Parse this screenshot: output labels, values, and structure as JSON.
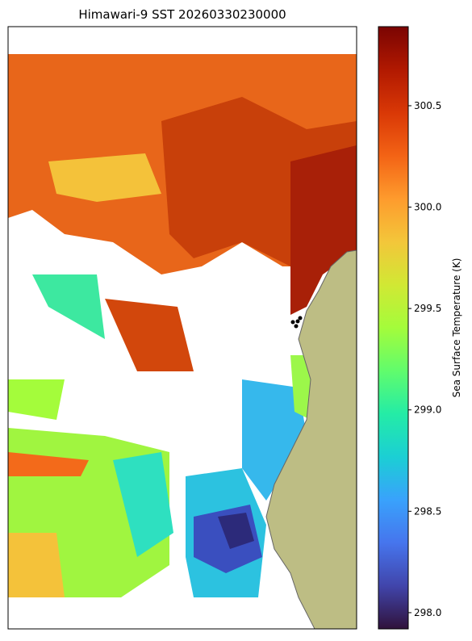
{
  "title": "Himawari-9 SST 20260330230000",
  "colorbar": {
    "label": "Sea Surface Temperature (K)",
    "vlim": [
      297.92,
      300.89
    ],
    "ticks": [
      {
        "value": 298,
        "label": "298.0"
      },
      298.5,
      {
        "value": 299,
        "label": "299.0"
      },
      299.5,
      {
        "value": 300,
        "label": "300.0"
      },
      300.5
    ],
    "colors": [
      "#30123b",
      "#4145ab",
      "#4675ed",
      "#39a2fc",
      "#1bcfd4",
      "#24eca6",
      "#61fc6c",
      "#a4fc3b",
      "#d1e834",
      "#f3c63a",
      "#fe9b2d",
      "#f36315",
      "#d93806",
      "#b11901",
      "#7a0402"
    ]
  }
}
